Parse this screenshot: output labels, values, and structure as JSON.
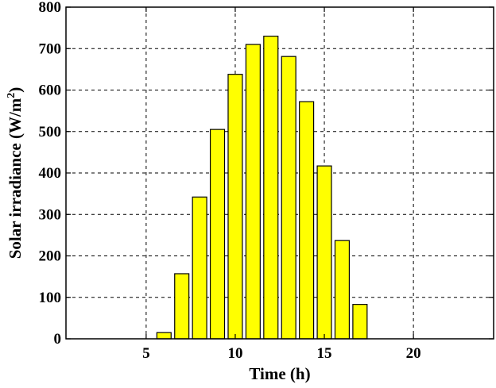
{
  "chart_data": {
    "type": "bar",
    "xlabel": "Time (h)",
    "ylabel": "Solar irradiance (W/m²)",
    "ylabel_main": "Solar irradiance (W/m",
    "ylabel_sup": "2",
    "ylabel_end": ")",
    "xlim": [
      0.5,
      24.5
    ],
    "ylim": [
      0,
      800
    ],
    "xticks": [
      5,
      10,
      15,
      20
    ],
    "yticks": [
      0,
      100,
      200,
      300,
      400,
      500,
      600,
      700,
      800
    ],
    "grid": true,
    "bar_color": "#ffff00",
    "x": [
      6,
      7,
      8,
      9,
      10,
      11,
      12,
      13,
      14,
      15,
      16,
      17
    ],
    "values": [
      15,
      157,
      342,
      505,
      638,
      710,
      730,
      681,
      572,
      417,
      237,
      83
    ]
  }
}
